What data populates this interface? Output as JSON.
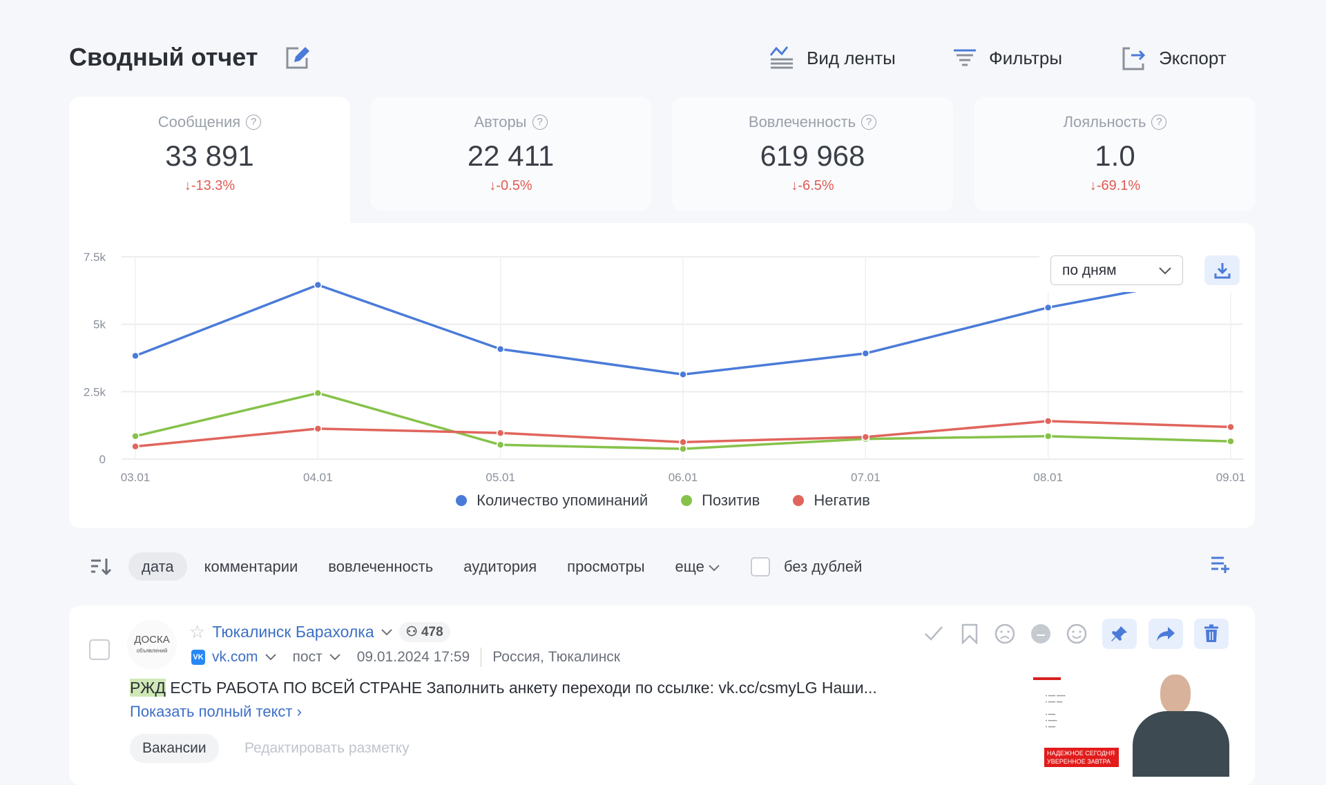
{
  "header": {
    "title": "Сводный отчет",
    "tools": [
      {
        "label": "Вид ленты",
        "icon": "feed-view-icon"
      },
      {
        "label": "Фильтры",
        "icon": "filter-icon"
      },
      {
        "label": "Экспорт",
        "icon": "export-icon"
      }
    ]
  },
  "metrics": [
    {
      "label": "Сообщения",
      "value": "33 891",
      "change": "↓-13.3%"
    },
    {
      "label": "Авторы",
      "value": "22 411",
      "change": "↓-0.5%"
    },
    {
      "label": "Вовлеченность",
      "value": "619 968",
      "change": "↓-6.5%"
    },
    {
      "label": "Лояльность",
      "value": "1.0",
      "change": "↓-69.1%"
    }
  ],
  "chart_controls": {
    "period": "по дням"
  },
  "chart_data": {
    "type": "line",
    "categories": [
      "03.01",
      "04.01",
      "05.01",
      "06.01",
      "07.01",
      "08.01",
      "09.01"
    ],
    "ylim": [
      0,
      7500
    ],
    "yticks": [
      "0",
      "2.5k",
      "5k",
      "7.5k"
    ],
    "grid": true,
    "legend": "bottom",
    "series": [
      {
        "name": "Количество упоминаний",
        "color": "#4a7bd8",
        "values": [
          3830,
          6460,
          4080,
          3140,
          3920,
          5620,
          6900
        ]
      },
      {
        "name": "Позитив",
        "color": "#86c24a",
        "values": [
          850,
          2450,
          530,
          380,
          750,
          850,
          660
        ]
      },
      {
        "name": "Негатив",
        "color": "#e0655d",
        "values": [
          470,
          1130,
          970,
          630,
          820,
          1410,
          1190
        ]
      }
    ]
  },
  "sort": {
    "options": [
      "дата",
      "комментарии",
      "вовлеченность",
      "аудитория",
      "просмотры"
    ],
    "more": "еще",
    "no_dupes": "без дублей"
  },
  "post": {
    "avatar": "ДОСКА",
    "avatar_sub": "объявлений",
    "author": "Тюкалинск Барахолка",
    "audience": "478",
    "source": "vk.com",
    "type": "пост",
    "datetime": "09.01.2024 17:59",
    "location": "Россия, Тюкалинск",
    "highlight": "РЖД",
    "text": " ЕСТЬ РАБОТА ПО ВСЕЙ СТРАНЕ Заполнить анкету переходи по ссылке: vk.cc/csmyLG Наши...",
    "show_full": "Показать полный текст ›",
    "tag": "Вакансии",
    "edit_markup": "Редактировать разметку",
    "image_text": "НАДЕЖНОЕ СЕГОДНЯ УВЕРЕННОЕ ЗАВТРА"
  }
}
